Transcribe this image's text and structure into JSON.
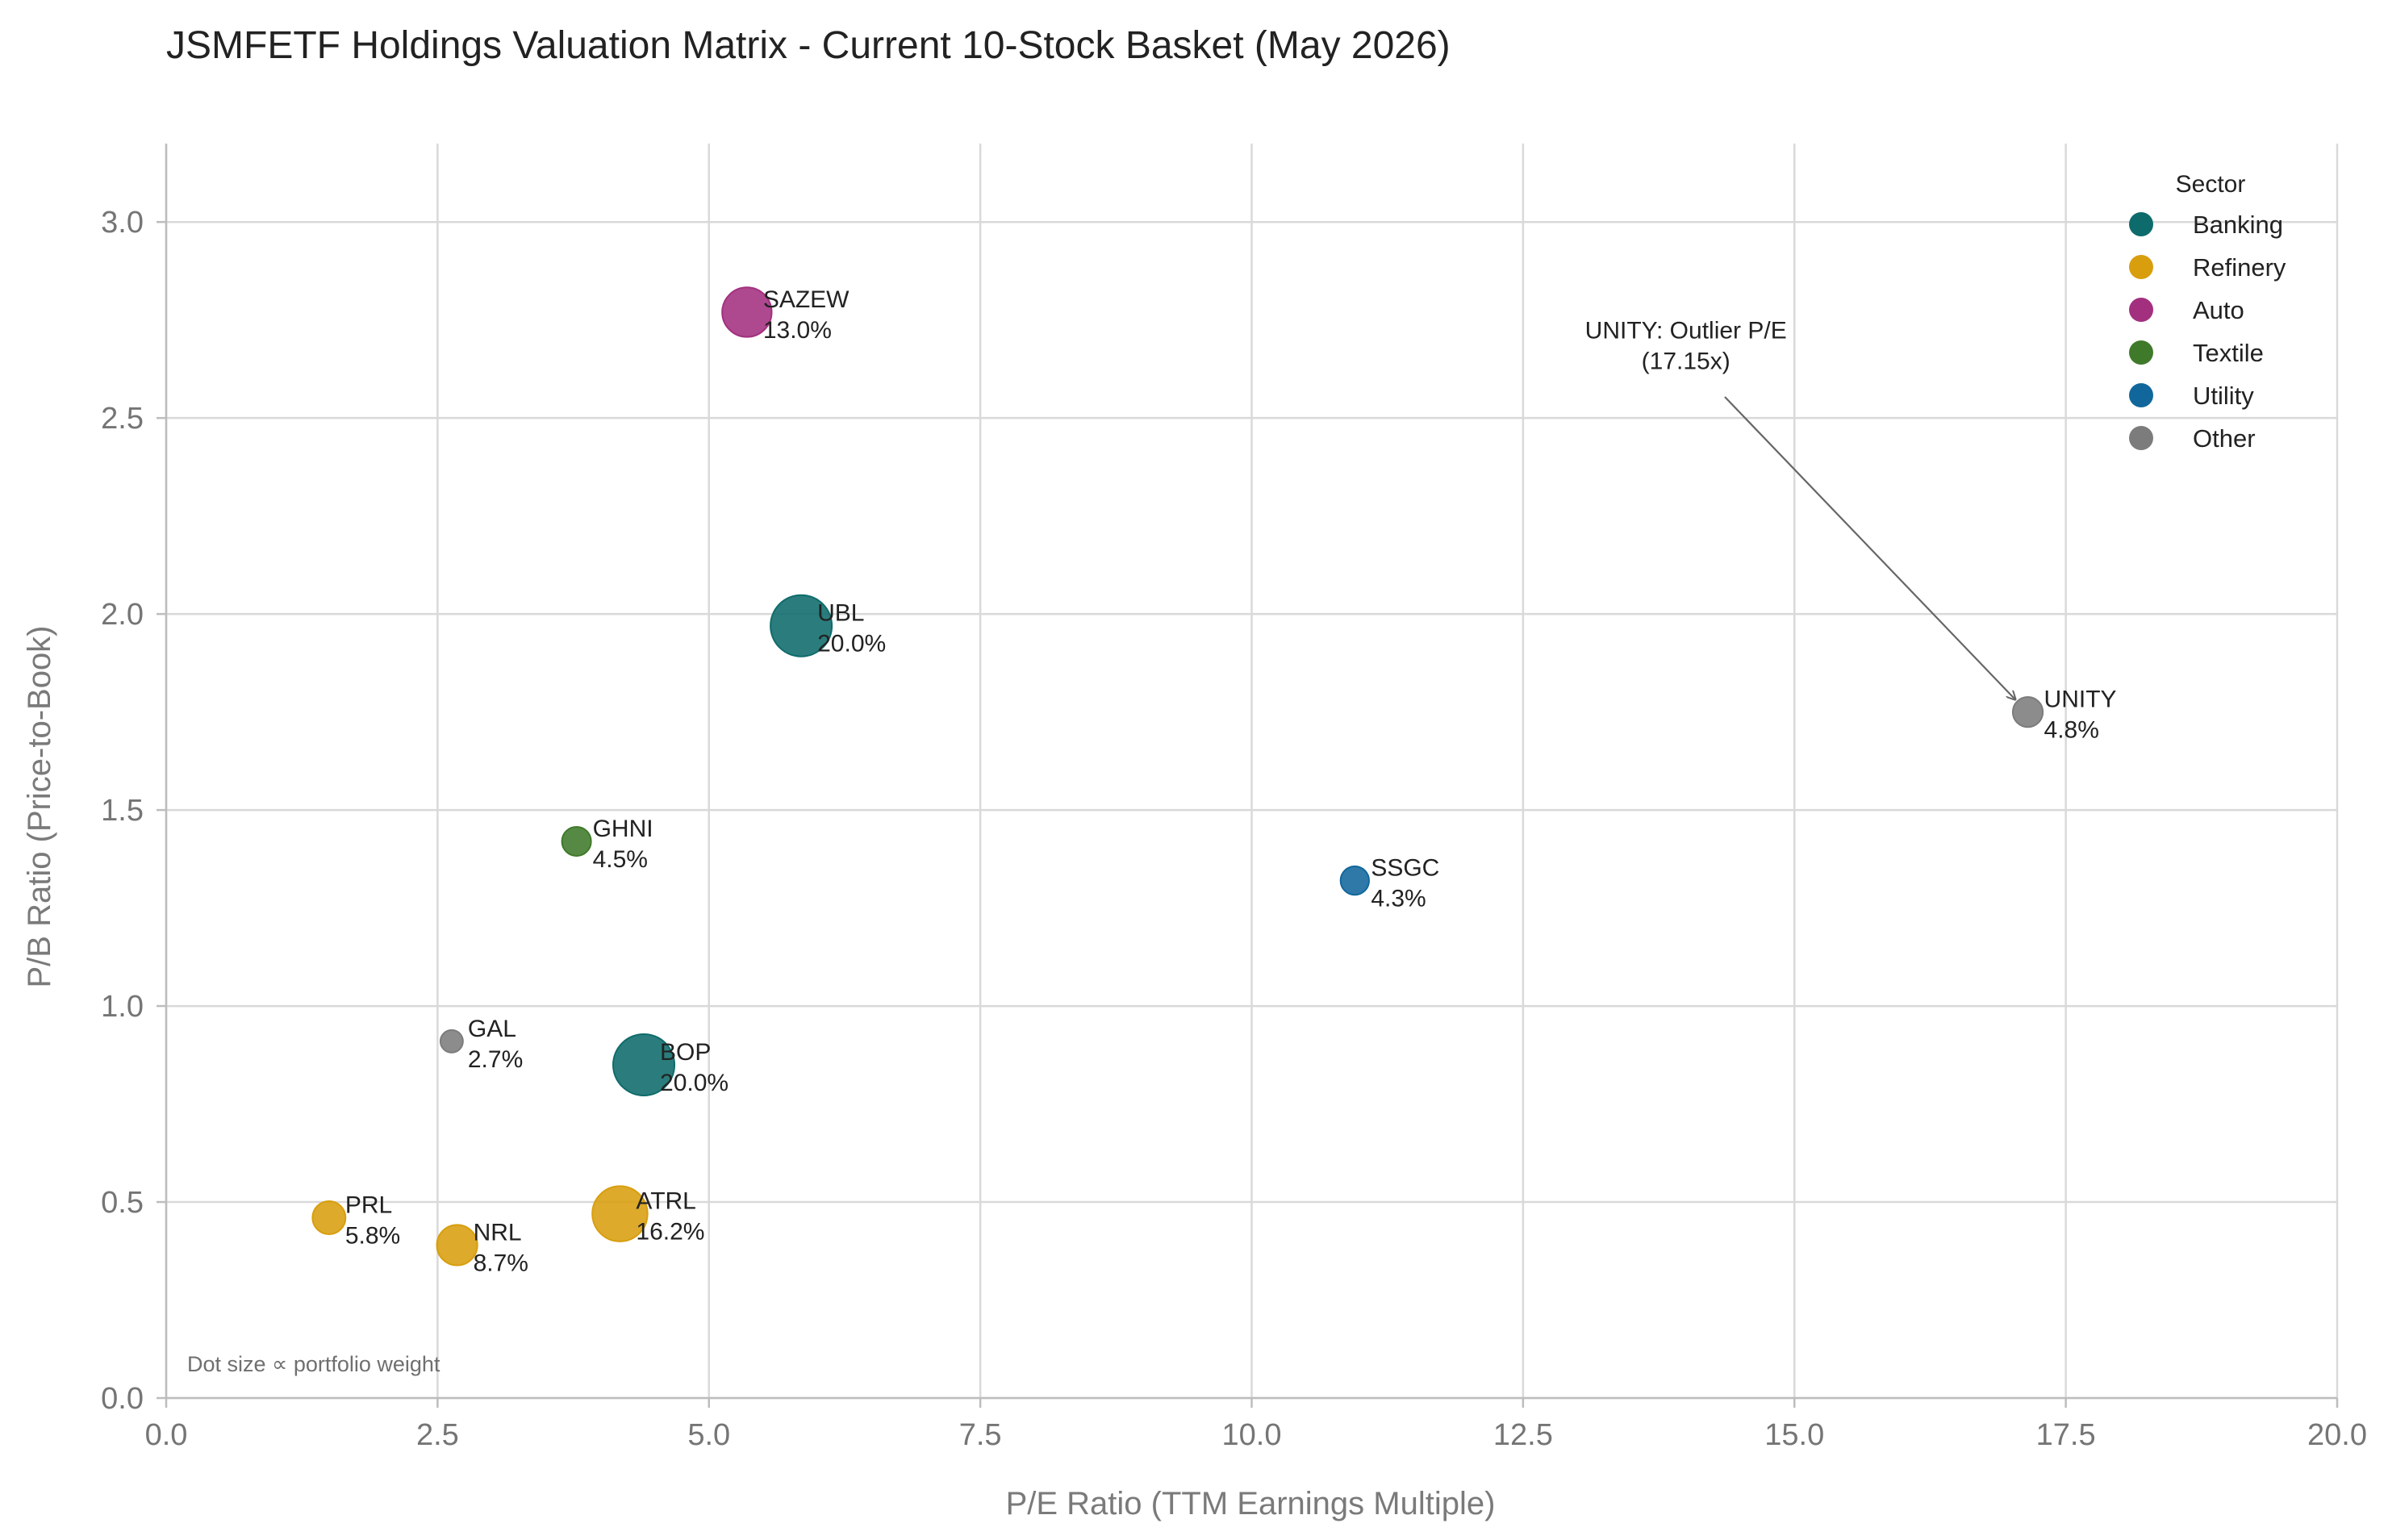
{
  "chart_data": {
    "type": "scatter",
    "title": "JSMFETF Holdings Valuation Matrix - Current 10-Stock Basket (May 2026)",
    "xlabel": "P/E Ratio (TTM Earnings Multiple)",
    "ylabel": "P/B Ratio (Price-to-Book)",
    "xlim": [
      0,
      20
    ],
    "ylim": [
      0,
      3.2
    ],
    "xticks": [
      0.0,
      2.5,
      5.0,
      7.5,
      10.0,
      12.5,
      15.0,
      17.5,
      20.0
    ],
    "yticks": [
      0.0,
      0.5,
      1.0,
      1.5,
      2.0,
      2.5,
      3.0
    ],
    "grid": true,
    "legend": {
      "title": "Sector",
      "placement": "top-right",
      "entries": [
        {
          "sector": "Banking",
          "color": "#0e6b6b"
        },
        {
          "sector": "Refinery",
          "color": "#d89e0e"
        },
        {
          "sector": "Auto",
          "color": "#a3307f"
        },
        {
          "sector": "Textile",
          "color": "#3f7a2a"
        },
        {
          "sector": "Utility",
          "color": "#11679c"
        },
        {
          "sector": "Other",
          "color": "#7c7c7c"
        }
      ]
    },
    "points": [
      {
        "ticker": "SAZEW",
        "weight_label": "13.0%",
        "weight": 13.0,
        "pe": 5.35,
        "pb": 2.77,
        "sector": "Auto"
      },
      {
        "ticker": "UBL",
        "weight_label": "20.0%",
        "weight": 20.0,
        "pe": 5.85,
        "pb": 1.97,
        "sector": "Banking"
      },
      {
        "ticker": "UNITY",
        "weight_label": "4.8%",
        "weight": 4.8,
        "pe": 17.15,
        "pb": 1.75,
        "sector": "Other"
      },
      {
        "ticker": "GHNI",
        "weight_label": "4.5%",
        "weight": 4.5,
        "pe": 3.78,
        "pb": 1.42,
        "sector": "Textile"
      },
      {
        "ticker": "SSGC",
        "weight_label": "4.3%",
        "weight": 4.3,
        "pe": 10.95,
        "pb": 1.32,
        "sector": "Utility"
      },
      {
        "ticker": "GAL",
        "weight_label": "2.7%",
        "weight": 2.7,
        "pe": 2.63,
        "pb": 0.91,
        "sector": "Other"
      },
      {
        "ticker": "BOP",
        "weight_label": "20.0%",
        "weight": 20.0,
        "pe": 4.4,
        "pb": 0.85,
        "sector": "Banking"
      },
      {
        "ticker": "PRL",
        "weight_label": "5.8%",
        "weight": 5.8,
        "pe": 1.5,
        "pb": 0.46,
        "sector": "Refinery"
      },
      {
        "ticker": "NRL",
        "weight_label": "8.7%",
        "weight": 8.7,
        "pe": 2.68,
        "pb": 0.39,
        "sector": "Refinery"
      },
      {
        "ticker": "ATRL",
        "weight_label": "16.2%",
        "weight": 16.2,
        "pe": 4.18,
        "pb": 0.47,
        "sector": "Refinery"
      }
    ],
    "annotations": [
      {
        "line1": "UNITY: Outlier P/E",
        "line2": "(17.15x)",
        "target_ticker": "UNITY",
        "text_pe": 14.0,
        "text_pb": 2.6
      }
    ],
    "footnote": "Dot size ∝ portfolio weight"
  }
}
